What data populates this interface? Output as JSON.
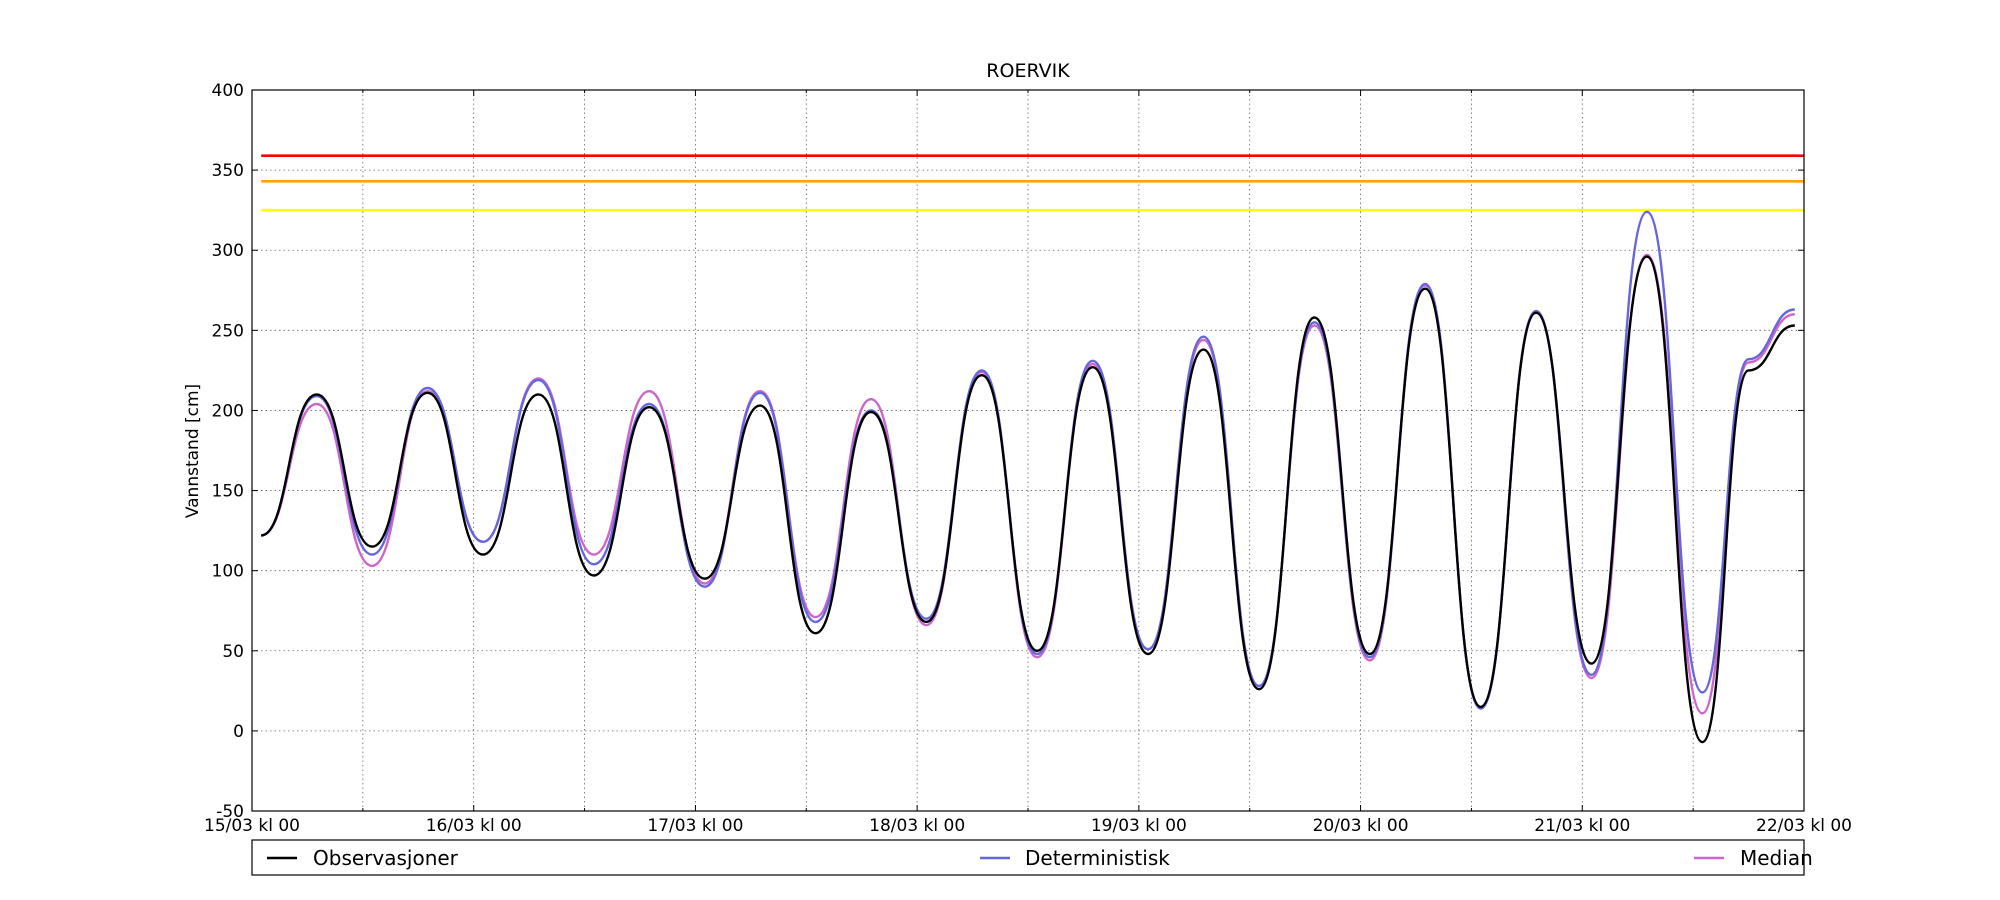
{
  "chart_data": {
    "type": "line",
    "title": "ROERVIK",
    "xlabel": "",
    "ylabel": "Vannstand [cm]",
    "ylim": [
      -50,
      400
    ],
    "yticks": [
      -50,
      0,
      50,
      100,
      150,
      200,
      250,
      300,
      350,
      400
    ],
    "xlim": [
      0,
      168
    ],
    "x_unit": "hours after 15/03 kl 00",
    "xticks": [
      0,
      24,
      48,
      72,
      96,
      120,
      144,
      168
    ],
    "xtick_labels": [
      "15/03 kl 00",
      "16/03 kl 00",
      "17/03 kl 00",
      "18/03 kl 00",
      "19/03 kl 00",
      "20/03 kl 00",
      "21/03 kl 00",
      "22/03 kl 00"
    ],
    "xgrid_minor": [
      12,
      36,
      60,
      84,
      108,
      132,
      156
    ],
    "grid": true,
    "legend_position": "bottom, below plot",
    "thresholds": [
      {
        "value": 359,
        "color": "#ff0000"
      },
      {
        "value": 343,
        "color": "#ffa500"
      },
      {
        "value": 325,
        "color": "#ffff00"
      }
    ],
    "x": [
      1,
      7,
      13,
      19,
      25,
      31,
      37,
      43,
      49,
      55,
      61,
      67,
      73,
      79,
      85,
      91,
      97,
      103,
      109,
      115,
      121,
      127,
      133,
      139,
      145,
      151,
      157,
      162,
      167
    ],
    "series": [
      {
        "name": "Observasjoner",
        "color": "#000000",
        "values": [
          122,
          210,
          115,
          211,
          110,
          210,
          97,
          202,
          95,
          203,
          61,
          199,
          68,
          222,
          50,
          227,
          48,
          238,
          26,
          258,
          48,
          276,
          15,
          261,
          42,
          296,
          -7,
          225,
          253
        ]
      },
      {
        "name": "Deterministisk",
        "color": "#6666dd",
        "values": [
          122,
          209,
          110,
          214,
          118,
          219,
          104,
          204,
          90,
          211,
          68,
          200,
          70,
          225,
          48,
          231,
          51,
          246,
          28,
          255,
          46,
          279,
          14,
          262,
          35,
          324,
          24,
          232,
          263
        ]
      },
      {
        "name": "Median",
        "color": "#cc66cc",
        "values": [
          122,
          204,
          103,
          212,
          118,
          220,
          110,
          212,
          92,
          212,
          71,
          207,
          66,
          224,
          46,
          229,
          51,
          244,
          28,
          253,
          44,
          278,
          14,
          262,
          33,
          297,
          11,
          230,
          260
        ]
      }
    ]
  }
}
